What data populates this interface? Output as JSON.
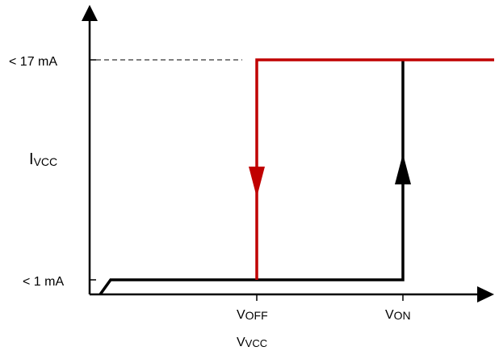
{
  "y_axis": {
    "label_main": "I",
    "label_sub": "VCC"
  },
  "x_axis": {
    "label_main": "V",
    "label_sub": "VCC"
  },
  "levels": {
    "high": "< 17 mA",
    "low": "< 1 mA"
  },
  "thresholds": {
    "off_main": "V",
    "off_sub": "OFF",
    "on_main": "V",
    "on_sub": "ON"
  },
  "colors": {
    "axis": "#000000",
    "rising_path": "#000000",
    "falling_path": "#c00000",
    "guide": "#000000"
  }
}
